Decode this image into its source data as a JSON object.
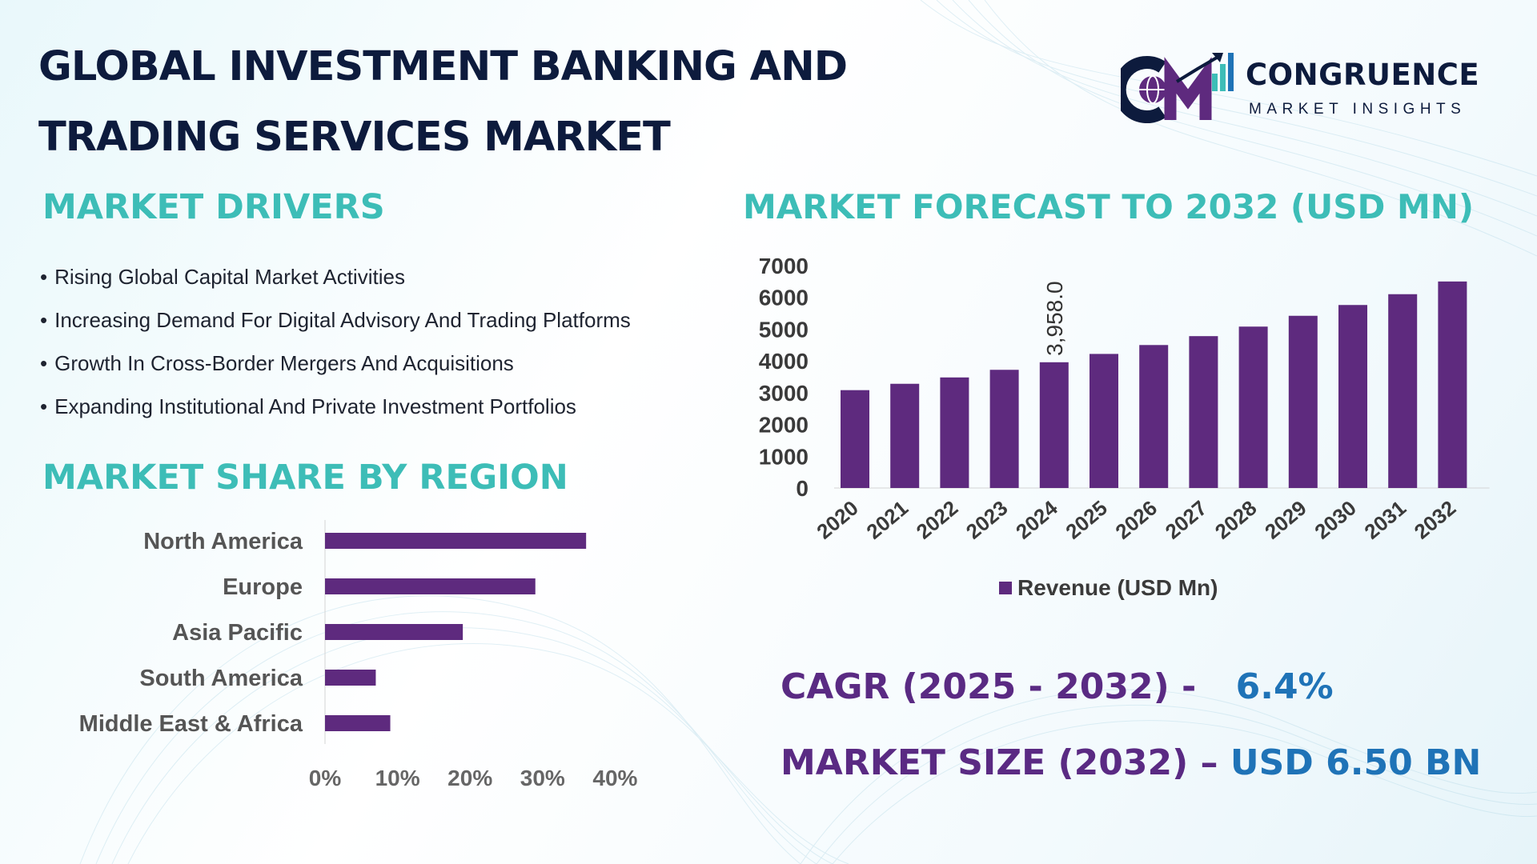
{
  "title": {
    "line1": "GLOBAL INVESTMENT BANKING AND",
    "line2": "TRADING SERVICES MARKET"
  },
  "logo": {
    "icon": "cm-globe-bar-logo-icon",
    "name": "CONGRUENCE",
    "subtitle": "MARKET INSIGHTS"
  },
  "drivers": {
    "heading": "MARKET DRIVERS",
    "items": [
      "Rising Global Capital Market Activities",
      "Increasing Demand For Digital Advisory And Trading Platforms",
      "Growth In Cross-Border Mergers And Acquisitions",
      "Expanding Institutional And Private Investment Portfolios"
    ]
  },
  "forecast": {
    "heading": "MARKET FORECAST TO 2032 (USD MN)"
  },
  "region": {
    "heading": "MARKET SHARE BY REGION"
  },
  "stats": {
    "cagr_label": "CAGR (2025 - 2032) -",
    "cagr_value": "6.4%",
    "size_label": "MARKET SIZE (2032) –",
    "size_value": "USD 6.50 BN"
  },
  "colors": {
    "bar": "#5e2a7e",
    "accent": "#3dbdb7",
    "navy": "#0d1b3d",
    "value_blue": "#1f73b7"
  },
  "chart_data": [
    {
      "type": "bar",
      "title": "MARKET FORECAST TO 2032 (USD MN)",
      "categories": [
        "2020",
        "2021",
        "2022",
        "2023",
        "2024",
        "2025",
        "2026",
        "2027",
        "2028",
        "2029",
        "2030",
        "2031",
        "2032"
      ],
      "series": [
        {
          "name": "Revenue (USD Mn)",
          "values": [
            3080,
            3280,
            3480,
            3720,
            3958,
            4220,
            4500,
            4780,
            5080,
            5420,
            5760,
            6100,
            6500
          ]
        }
      ],
      "yticks": [
        0,
        1000,
        2000,
        3000,
        4000,
        5000,
        6000,
        7000
      ],
      "ylim": [
        0,
        7000
      ],
      "data_label": {
        "category": "2024",
        "text": "3,958.0"
      },
      "legend": "Revenue (USD Mn)",
      "legend_position": "bottom"
    },
    {
      "type": "bar",
      "orientation": "horizontal",
      "title": "MARKET SHARE BY REGION",
      "categories": [
        "North America",
        "Europe",
        "Asia Pacific",
        "South America",
        "Middle East & Africa"
      ],
      "values": [
        36,
        29,
        19,
        7,
        9
      ],
      "xticks": [
        "0%",
        "10%",
        "20%",
        "30%",
        "40%"
      ],
      "xlim": [
        0,
        40
      ],
      "unit": "%"
    }
  ]
}
